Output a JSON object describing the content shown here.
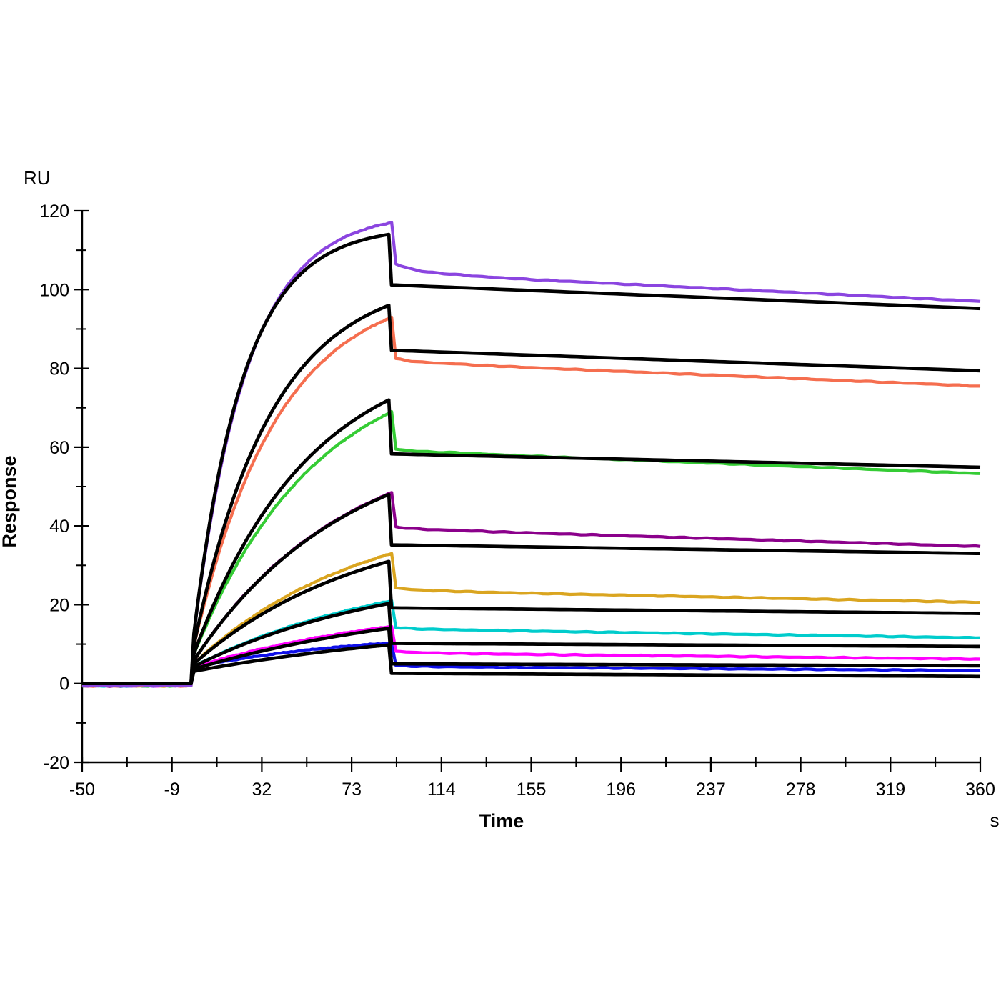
{
  "figure": {
    "background_color": "#FFFFFF",
    "axis_color": "#000000",
    "text_color": "#000000"
  },
  "chart_data": {
    "type": "line",
    "subtype": "spr-sensorgram",
    "title": "",
    "xlabel": "Time",
    "x_unit": "s",
    "ylabel": "Response",
    "y_unit": "RU",
    "xlim": [
      -50,
      360
    ],
    "ylim": [
      -20,
      120
    ],
    "x_major_ticks": [
      -50,
      -9,
      32,
      73,
      114,
      155,
      196,
      237,
      278,
      319,
      360
    ],
    "y_major_ticks": [
      120,
      100,
      80,
      60,
      40,
      20,
      0,
      -20
    ],
    "y_minor_step": 10,
    "grid": false,
    "legend": "none",
    "fit_color": "#000000",
    "phases": {
      "baseline_start_s": -50,
      "association_start_s": 0,
      "dissociation_start_s": 90,
      "end_s": 360
    },
    "series": [
      {
        "name": "violet",
        "color": "#8B45E0",
        "baseline_ru": -0.5,
        "jump_ru": 8.0,
        "k_obs": 0.041,
        "peak_ru": 117.0,
        "post_drop_ru": 106.5,
        "settle_ru": 103.5,
        "end_ru": 97.0
      },
      {
        "name": "salmon",
        "color": "#F56E4F",
        "baseline_ru": -0.5,
        "jump_ru": 7.0,
        "k_obs": 0.026,
        "peak_ru": 93.0,
        "post_drop_ru": 82.5,
        "settle_ru": 81.0,
        "end_ru": 75.5
      },
      {
        "name": "green",
        "color": "#35CC35",
        "baseline_ru": -0.5,
        "jump_ru": 6.0,
        "k_obs": 0.018,
        "peak_ru": 69.0,
        "post_drop_ru": 59.5,
        "settle_ru": 58.5,
        "end_ru": 53.3
      },
      {
        "name": "dark-magenta",
        "color": "#8B008B",
        "baseline_ru": -0.5,
        "jump_ru": 5.0,
        "k_obs": 0.0145,
        "peak_ru": 48.5,
        "post_drop_ru": 39.8,
        "settle_ru": 38.8,
        "end_ru": 34.8
      },
      {
        "name": "gold",
        "color": "#DAA520",
        "baseline_ru": -0.5,
        "jump_ru": 4.5,
        "k_obs": 0.013,
        "peak_ru": 33.0,
        "post_drop_ru": 24.3,
        "settle_ru": 23.3,
        "end_ru": 20.6
      },
      {
        "name": "cyan",
        "color": "#00CCCC",
        "baseline_ru": -0.5,
        "jump_ru": 4.0,
        "k_obs": 0.011,
        "peak_ru": 21.0,
        "post_drop_ru": 14.2,
        "settle_ru": 13.6,
        "end_ru": 11.6
      },
      {
        "name": "magenta",
        "color": "#FF00FF",
        "baseline_ru": -0.5,
        "jump_ru": 4.0,
        "k_obs": 0.01,
        "peak_ru": 14.5,
        "post_drop_ru": 8.2,
        "settle_ru": 7.6,
        "end_ru": 6.2
      },
      {
        "name": "blue",
        "color": "#0F0FE8",
        "baseline_ru": -0.5,
        "jump_ru": 4.0,
        "k_obs": 0.013,
        "peak_ru": 10.3,
        "post_drop_ru": 4.6,
        "settle_ru": 4.2,
        "end_ru": 3.3
      }
    ],
    "fits": [
      {
        "name": "fit-violet",
        "color": "#000000",
        "jump_ru": 8.0,
        "k_obs": 0.044,
        "peak_ru": 114.0,
        "post_drop_ru": 101.2,
        "end_ru": 95.2
      },
      {
        "name": "fit-salmon",
        "color": "#000000",
        "jump_ru": 7.0,
        "k_obs": 0.028,
        "peak_ru": 96.0,
        "post_drop_ru": 84.6,
        "end_ru": 79.4
      },
      {
        "name": "fit-green",
        "color": "#000000",
        "jump_ru": 6.0,
        "k_obs": 0.019,
        "peak_ru": 72.0,
        "post_drop_ru": 58.3,
        "end_ru": 54.9
      },
      {
        "name": "fit-dark-magenta",
        "color": "#000000",
        "jump_ru": 5.0,
        "k_obs": 0.0145,
        "peak_ru": 48.0,
        "post_drop_ru": 35.2,
        "end_ru": 33.0
      },
      {
        "name": "fit-gold",
        "color": "#000000",
        "jump_ru": 4.5,
        "k_obs": 0.013,
        "peak_ru": 31.0,
        "post_drop_ru": 19.2,
        "end_ru": 17.8
      },
      {
        "name": "fit-cyan",
        "color": "#000000",
        "jump_ru": 4.0,
        "k_obs": 0.011,
        "peak_ru": 20.3,
        "post_drop_ru": 10.2,
        "end_ru": 9.4
      },
      {
        "name": "fit-magenta",
        "color": "#000000",
        "jump_ru": 3.5,
        "k_obs": 0.009,
        "peak_ru": 14.0,
        "post_drop_ru": 5.0,
        "end_ru": 4.5
      },
      {
        "name": "fit-blue",
        "color": "#000000",
        "jump_ru": 3.0,
        "k_obs": 0.008,
        "peak_ru": 9.8,
        "post_drop_ru": 2.6,
        "end_ru": 1.8
      }
    ]
  }
}
